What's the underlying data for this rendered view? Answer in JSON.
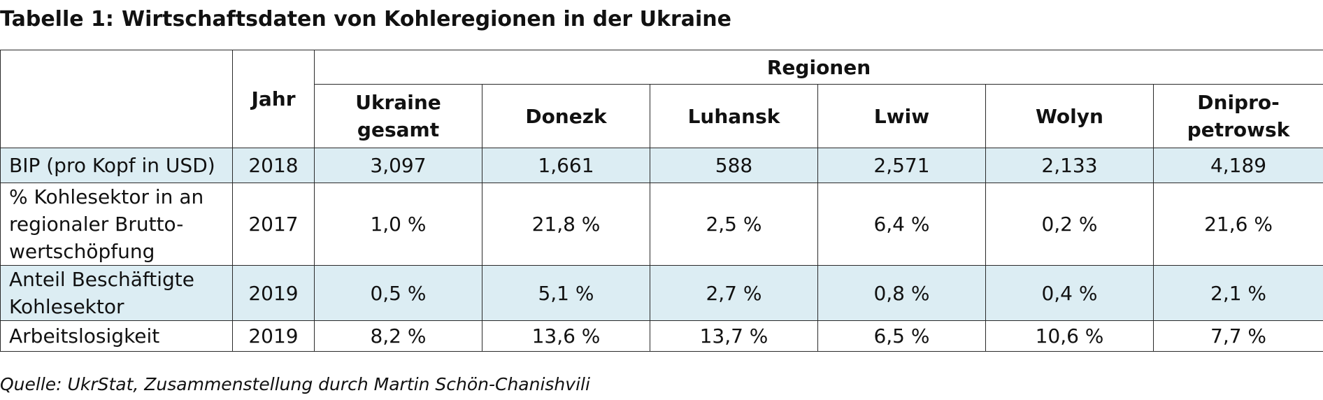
{
  "title": {
    "number": "Tabelle 1:",
    "text": "Wirtschaftsdaten von Kohleregionen in der Ukraine"
  },
  "table": {
    "header": {
      "year": "Jahr",
      "group": "Regionen",
      "regions": [
        [
          "Ukraine",
          "gesamt"
        ],
        [
          "Donezk"
        ],
        [
          "Luhansk"
        ],
        [
          "Lwiw"
        ],
        [
          "Wolyn"
        ],
        [
          "Dnipro-",
          "petrowsk"
        ]
      ]
    },
    "rows": [
      {
        "label": [
          "BIP (pro Kopf in USD)"
        ],
        "year": "2018",
        "values": [
          "3,097",
          "1,661",
          "588",
          "2,571",
          "2,133",
          "4,189"
        ]
      },
      {
        "label": [
          " % Kohlesektor in an",
          "regionaler Brutto-",
          "wertschöpfung"
        ],
        "year": "2017",
        "values": [
          "1,0 %",
          "21,8 %",
          "2,5 %",
          "6,4 %",
          "0,2 %",
          "21,6 %"
        ]
      },
      {
        "label": [
          "Anteil Beschäftigte",
          "Kohlesektor"
        ],
        "year": "2019",
        "values": [
          "0,5 %",
          "5,1 %",
          "2,7 %",
          "0,8 %",
          "0,4 %",
          "2,1 %"
        ]
      },
      {
        "label": [
          "Arbeitslosigkeit"
        ],
        "year": "2019",
        "values": [
          "8,2 %",
          "13,6 %",
          "13,7 %",
          "6,5 %",
          "10,6 %",
          "7,7 %"
        ]
      }
    ]
  },
  "source": "Quelle: UkrStat, Zusammenstellung durch Martin Schön-Chanishvili",
  "colors": {
    "row_shade": "#dcedf3",
    "border": "#2a2a2a"
  }
}
